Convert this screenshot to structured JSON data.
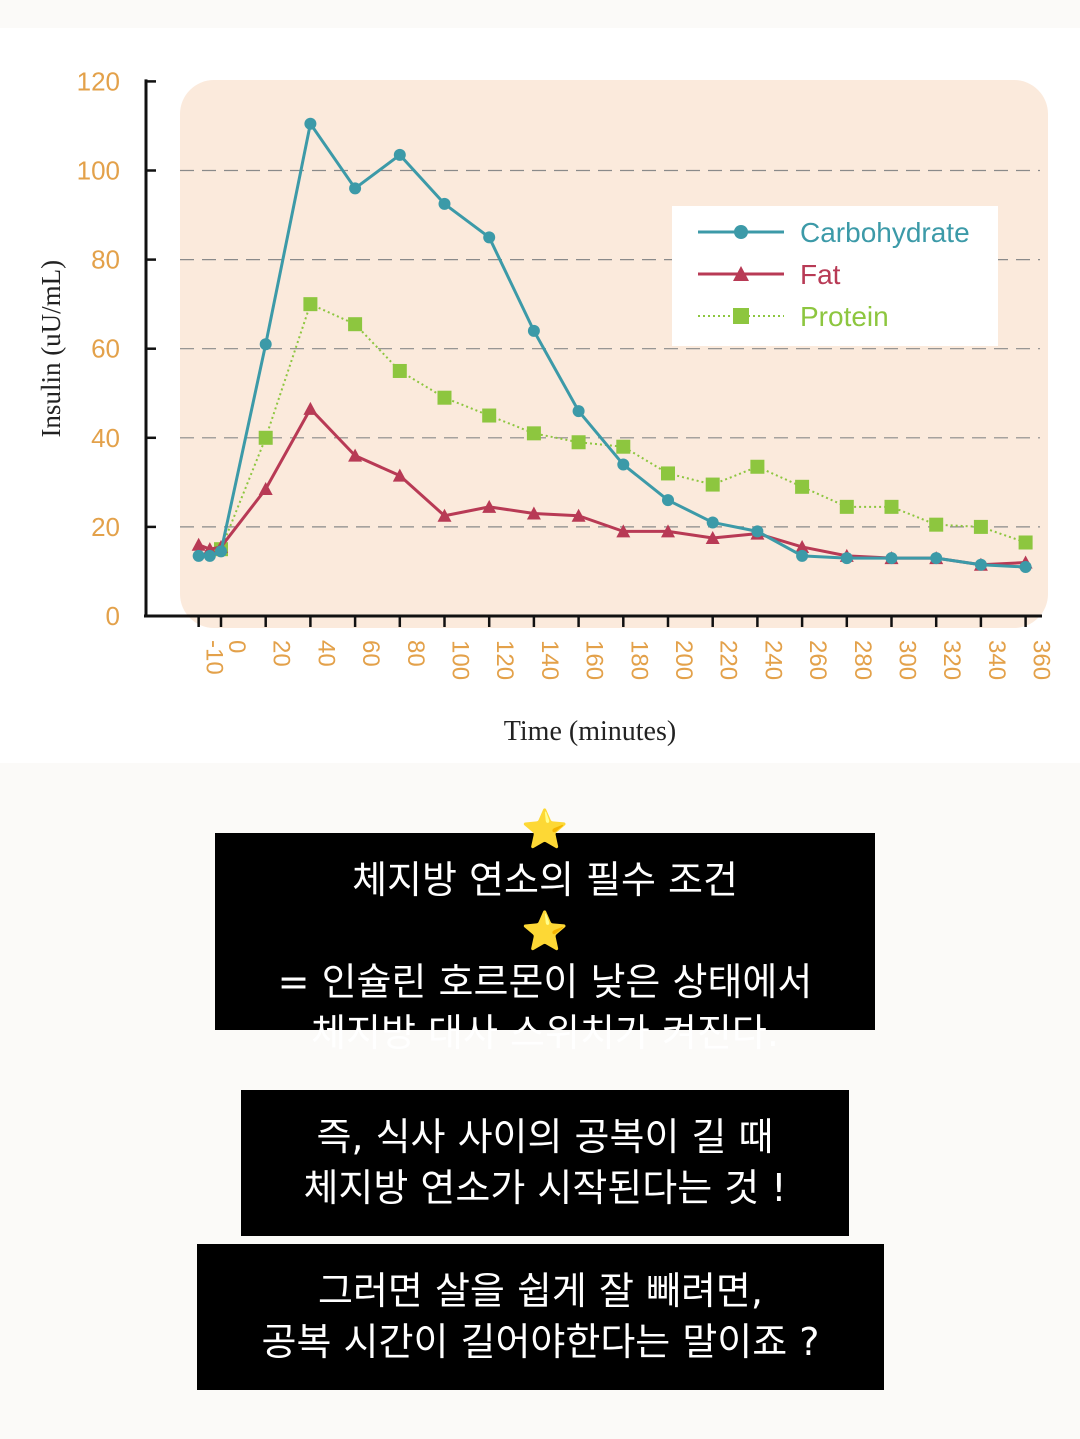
{
  "chart_data": {
    "type": "line",
    "xlabel": "Time (minutes)",
    "ylabel": "Insulin (uU/mL)",
    "ylim": [
      0,
      120
    ],
    "yticks": [
      0,
      20,
      40,
      60,
      80,
      100,
      120
    ],
    "xticks": [
      -10,
      0,
      20,
      40,
      60,
      80,
      100,
      120,
      140,
      160,
      180,
      200,
      220,
      240,
      260,
      280,
      300,
      320,
      340,
      360
    ],
    "grid": "horizontal dashed",
    "legend_position": "top-right",
    "series": [
      {
        "name": "Carbohydrate",
        "color": "#3c9aa8",
        "marker": "circle",
        "line": "solid",
        "x": [
          -10,
          -5,
          0,
          20,
          40,
          60,
          80,
          100,
          120,
          140,
          160,
          180,
          200,
          220,
          240,
          260,
          280,
          300,
          320,
          340,
          360
        ],
        "values": [
          13.5,
          13.5,
          14.5,
          61,
          110.5,
          96,
          103.5,
          92.5,
          85,
          64,
          46,
          34,
          26,
          21,
          19,
          13.5,
          13,
          13,
          13,
          11.5,
          11
        ]
      },
      {
        "name": "Fat",
        "color": "#b83a55",
        "marker": "triangle",
        "line": "solid",
        "x": [
          -10,
          -5,
          0,
          20,
          40,
          60,
          80,
          100,
          120,
          140,
          160,
          180,
          200,
          220,
          240,
          260,
          280,
          300,
          320,
          340,
          360
        ],
        "values": [
          16,
          15,
          15.5,
          28.5,
          46.5,
          36,
          31.5,
          22.5,
          24.5,
          23,
          22.5,
          19,
          19,
          17.5,
          18.5,
          15.5,
          13.5,
          13,
          13,
          11.5,
          12
        ]
      },
      {
        "name": "Protein",
        "color": "#8dc63f",
        "marker": "square",
        "line": "dotted",
        "x": [
          0,
          20,
          40,
          60,
          80,
          100,
          120,
          140,
          160,
          180,
          200,
          220,
          240,
          260,
          280,
          300,
          320,
          340,
          360
        ],
        "values": [
          15,
          40,
          70,
          65.5,
          55,
          49,
          45,
          41,
          39,
          38,
          32,
          29.5,
          33.5,
          29,
          24.5,
          24.5,
          20.5,
          20,
          16.5
        ]
      }
    ]
  },
  "captions": {
    "box1": {
      "star": "⭐",
      "line1": "체지방 연소의 필수 조건",
      "line2": "= 인슐린 호르몬이 낮은 상태에서",
      "line3": "체지방 대사 스위치가 켜진다."
    },
    "box2": {
      "line1": "즉, 식사 사이의 공복이 길 때",
      "line2": "체지방 연소가 시작된다는 것 !"
    },
    "box3": {
      "line1": "그러면 살을 쉽게 잘 빼려면,",
      "line2": "공복 시간이 길어야한다는 말이죠 ?"
    }
  }
}
